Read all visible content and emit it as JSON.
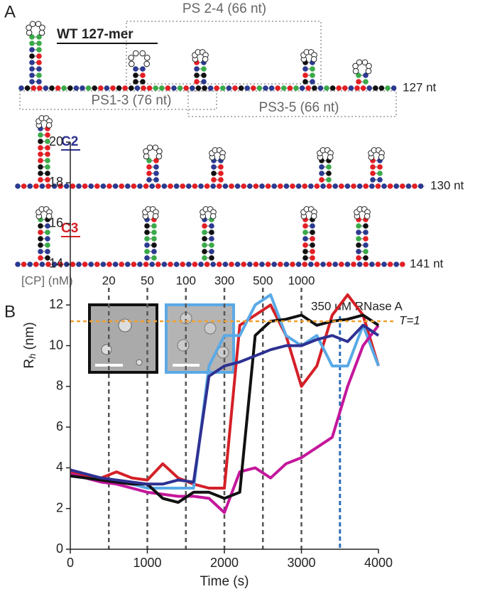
{
  "panel_a": {
    "label": "A",
    "ps24": "PS 2-4 (66 nt)",
    "ps13": "PS1-3 (76 nt)",
    "ps35": "PS3-5 (66 nt)",
    "constructs": [
      {
        "name": "WT 127-mer",
        "length": "127 nt"
      },
      {
        "name": "C2",
        "length": "130 nt"
      },
      {
        "name": "C3",
        "length": "141 nt"
      }
    ]
  },
  "chart_data": {
    "type": "line",
    "panel_label": "B",
    "x": [
      0,
      200,
      400,
      600,
      800,
      1000,
      1200,
      1400,
      1600,
      1800,
      2000,
      2200,
      2400,
      2600,
      2800,
      3000,
      3200,
      3400,
      3600,
      3800,
      4000
    ],
    "series": [
      {
        "color": "#d42027",
        "values": [
          3.8,
          3.6,
          3.5,
          3.8,
          3.5,
          3.4,
          4.2,
          3.5,
          3.2,
          3.0,
          3.0,
          11,
          11.5,
          12,
          10.5,
          8,
          9,
          11.5,
          12.5,
          11.5,
          9
        ]
      },
      {
        "color": "#5aa9e6",
        "values": [
          3.6,
          3.5,
          3.4,
          3.3,
          3.2,
          3.0,
          3.0,
          3.0,
          3.0,
          9,
          10.5,
          10.5,
          12,
          12.5,
          10.5,
          10,
          10.5,
          9,
          9,
          11,
          9
        ]
      },
      {
        "color": "#c4169c",
        "values": [
          3.7,
          3.5,
          3.3,
          3.2,
          3.0,
          2.8,
          2.7,
          2.6,
          2.6,
          2.5,
          1.8,
          3.8,
          4,
          3.5,
          4.2,
          4.5,
          5,
          5.5,
          8,
          10,
          11
        ]
      },
      {
        "color": "#111111",
        "values": [
          3.6,
          3.5,
          3.4,
          3.3,
          3.2,
          3.2,
          2.5,
          2.3,
          2.8,
          2.8,
          2.5,
          2.8,
          10.5,
          11.2,
          11.3,
          11.5,
          11,
          11.2,
          11.3,
          11.5,
          11
        ]
      },
      {
        "color": "#2e3192",
        "values": [
          3.9,
          3.7,
          3.5,
          3.4,
          3.3,
          3.2,
          3.2,
          3.4,
          3.3,
          8.5,
          9,
          9.2,
          9.5,
          9.8,
          10,
          10,
          10.3,
          10.5,
          10.2,
          11,
          10.5
        ]
      }
    ],
    "xlim": [
      0,
      4000
    ],
    "xticks": [
      0,
      1000,
      2000,
      3000,
      4000
    ],
    "ylim": [
      0,
      20
    ],
    "yticks": [
      0,
      2,
      4,
      6,
      8,
      10,
      12,
      14,
      16,
      18,
      20
    ],
    "x_label": "Time (s)",
    "y_label": {
      "main": "R",
      "sub": "h",
      "unit": " (nm)"
    },
    "cp_label": "[CP] (nM)",
    "cp_additions": {
      "x": [
        500,
        1000,
        1500,
        2000,
        2500,
        3000
      ],
      "concentrations": [
        20,
        50,
        100,
        300,
        500,
        1000
      ]
    },
    "rnase": {
      "x": 3500,
      "label": "350 μM RNase A",
      "color": "#2f6fb8"
    },
    "threshold": {
      "value": 11.2,
      "label": "T=1",
      "color": "#f0a030"
    }
  }
}
